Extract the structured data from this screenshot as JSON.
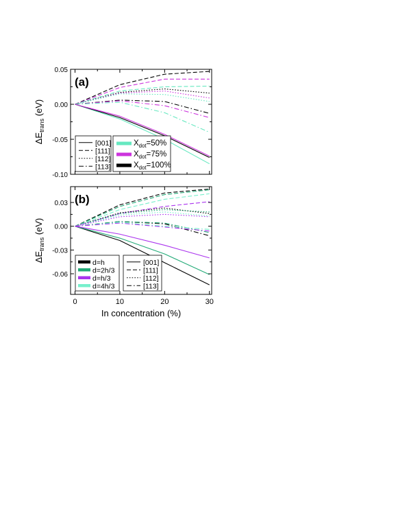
{
  "chart_data": [
    {
      "type": "line",
      "panel_label": "(a)",
      "ylabel_main": "ΔE",
      "ylabel_sub": "trans",
      "ylabel_unit": " (eV)",
      "xlabel": "",
      "xlim": [
        -1,
        30.5
      ],
      "ylim": [
        -0.1,
        0.05
      ],
      "xticks": [
        0,
        10,
        20,
        30
      ],
      "xtick_labels": [
        "",
        "",
        "",
        ""
      ],
      "yticks": [
        -0.1,
        -0.05,
        0.0,
        0.05
      ],
      "ytick_labels": [
        "-0.10",
        "-0.05",
        "0.00",
        "0.05"
      ],
      "grid": false,
      "x": [
        0,
        10,
        20,
        30
      ],
      "legend_directions": {
        "placement": "bottom-left",
        "items": [
          {
            "label": "[001]",
            "style": "solid"
          },
          {
            "label": "[111]",
            "style": "dashed"
          },
          {
            "label": "[112]",
            "style": "dotted"
          },
          {
            "label": "[113]",
            "style": "dashdot"
          }
        ]
      },
      "legend_xdot": {
        "placement": "bottom-center",
        "items": [
          {
            "main": "X",
            "sub": "dot",
            "suffix": "=50%",
            "color": "#66e8c0"
          },
          {
            "main": "X",
            "sub": "dot",
            "suffix": "=75%",
            "color": "#cc33dd"
          },
          {
            "main": "X",
            "sub": "dot",
            "suffix": "=100%",
            "color": "#000000"
          }
        ]
      },
      "series": [
        {
          "direction": "[111]",
          "style": "dashed",
          "color": "#000000",
          "values": [
            0,
            0.028,
            0.043,
            0.047
          ]
        },
        {
          "direction": "[111]",
          "style": "dashed",
          "color": "#cc33dd",
          "values": [
            0,
            0.024,
            0.036,
            0.036
          ]
        },
        {
          "direction": "[111]",
          "style": "dashed",
          "color": "#66e8c0",
          "values": [
            0,
            0.019,
            0.025,
            0.026
          ]
        },
        {
          "direction": "[112]",
          "style": "dotted",
          "color": "#000000",
          "values": [
            0,
            0.017,
            0.022,
            0.016
          ]
        },
        {
          "direction": "[112]",
          "style": "dotted",
          "color": "#cc33dd",
          "values": [
            0,
            0.016,
            0.019,
            0.009
          ]
        },
        {
          "direction": "[112]",
          "style": "dotted",
          "color": "#66e8c0",
          "values": [
            0,
            0.015,
            0.014,
            0.004
          ]
        },
        {
          "direction": "[113]",
          "style": "dashdot",
          "color": "#000000",
          "values": [
            0,
            0.006,
            0.004,
            -0.013
          ]
        },
        {
          "direction": "[113]",
          "style": "dashdot",
          "color": "#cc33dd",
          "values": [
            0,
            0.005,
            -0.002,
            -0.019
          ]
        },
        {
          "direction": "[113]",
          "style": "dashdot",
          "color": "#66e8c0",
          "values": [
            0,
            0.003,
            -0.012,
            -0.04
          ]
        },
        {
          "direction": "[001]",
          "style": "solid",
          "color": "#66e8c0",
          "values": [
            0,
            -0.021,
            -0.05,
            -0.085
          ]
        },
        {
          "direction": "[001]",
          "style": "solid",
          "color": "#000000",
          "values": [
            0,
            -0.019,
            -0.045,
            -0.076
          ]
        },
        {
          "direction": "[001]",
          "style": "solid",
          "color": "#cc33dd",
          "values": [
            0,
            -0.017,
            -0.043,
            -0.074
          ]
        }
      ]
    },
    {
      "type": "line",
      "panel_label": "(b)",
      "ylabel_main": "ΔE",
      "ylabel_sub": "trans",
      "ylabel_unit": " (eV)",
      "xlabel": "In concentration (%)",
      "xlim": [
        -1,
        30.5
      ],
      "ylim": [
        -0.086,
        0.05
      ],
      "xticks": [
        0,
        10,
        20,
        30
      ],
      "xtick_labels": [
        "0",
        "10",
        "20",
        "30"
      ],
      "yticks": [
        -0.06,
        -0.03,
        0.0,
        0.03
      ],
      "ytick_labels": [
        "-0.06",
        "-0.03",
        "0.00",
        "0.03"
      ],
      "grid": false,
      "x": [
        0,
        10,
        20,
        30
      ],
      "legend_d": {
        "placement": "bottom-left",
        "items": [
          {
            "label": "d=h",
            "color": "#000000"
          },
          {
            "label": "d=2h/3",
            "color": "#22aa77"
          },
          {
            "label": "d=h/3",
            "color": "#aa33ee"
          },
          {
            "label": "d=4h/3",
            "color": "#77f0cc"
          }
        ]
      },
      "legend_directions": {
        "placement": "bottom-center",
        "items": [
          {
            "label": "[001]",
            "style": "solid"
          },
          {
            "label": "[111]",
            "style": "dashed"
          },
          {
            "label": "[112]",
            "style": "dotted"
          },
          {
            "label": "[113]",
            "style": "dashdot"
          }
        ]
      },
      "series": [
        {
          "direction": "[111]",
          "style": "dashed",
          "color": "#000000",
          "values": [
            0,
            0.027,
            0.042,
            0.047
          ]
        },
        {
          "direction": "[111]",
          "style": "dashed",
          "color": "#22aa77",
          "values": [
            0,
            0.025,
            0.04,
            0.046
          ]
        },
        {
          "direction": "[111]",
          "style": "dashed",
          "color": "#77f0cc",
          "values": [
            0,
            0.021,
            0.034,
            0.041
          ]
        },
        {
          "direction": "[111]",
          "style": "dashed",
          "color": "#aa33ee",
          "values": [
            0,
            0.016,
            0.025,
            0.031
          ]
        },
        {
          "direction": "[112]",
          "style": "dotted",
          "color": "#000000",
          "values": [
            0,
            0.017,
            0.023,
            0.016
          ]
        },
        {
          "direction": "[112]",
          "style": "dotted",
          "color": "#22aa77",
          "values": [
            0,
            0.016,
            0.021,
            0.018
          ]
        },
        {
          "direction": "[112]",
          "style": "dotted",
          "color": "#77f0cc",
          "values": [
            0,
            0.014,
            0.018,
            0.013
          ]
        },
        {
          "direction": "[112]",
          "style": "dotted",
          "color": "#aa33ee",
          "values": [
            0,
            0.012,
            0.015,
            0.012
          ]
        },
        {
          "direction": "[113]",
          "style": "dashdot",
          "color": "#000000",
          "values": [
            0,
            0.006,
            0.003,
            -0.012
          ]
        },
        {
          "direction": "[113]",
          "style": "dashdot",
          "color": "#22aa77",
          "values": [
            0,
            0.006,
            0.004,
            -0.008
          ]
        },
        {
          "direction": "[113]",
          "style": "dashdot",
          "color": "#77f0cc",
          "values": [
            0,
            0.005,
            0.0,
            -0.004
          ]
        },
        {
          "direction": "[113]",
          "style": "dashdot",
          "color": "#aa33ee",
          "values": [
            0,
            0.004,
            -0.001,
            -0.006
          ]
        },
        {
          "direction": "[001]",
          "style": "solid",
          "color": "#000000",
          "values": [
            0,
            -0.018,
            -0.046,
            -0.074
          ]
        },
        {
          "direction": "[001]",
          "style": "solid",
          "color": "#22aa77",
          "values": [
            0,
            -0.015,
            -0.035,
            -0.061
          ]
        },
        {
          "direction": "[001]",
          "style": "solid",
          "color": "#aa33ee",
          "values": [
            0,
            -0.01,
            -0.024,
            -0.04
          ]
        }
      ]
    }
  ]
}
